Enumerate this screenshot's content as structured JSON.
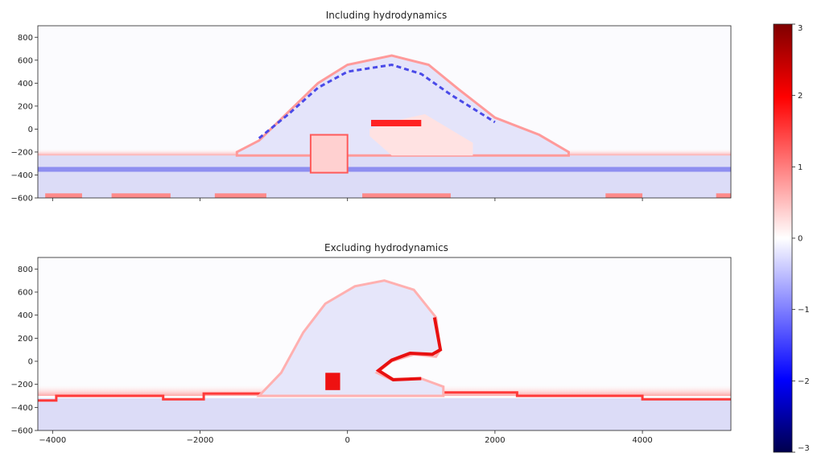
{
  "chart_data": [
    {
      "type": "heatmap",
      "title": "Including hydrodynamics",
      "xlabel": "",
      "ylabel": "",
      "xlim": [
        -4200,
        5200
      ],
      "ylim": [
        -600,
        900
      ],
      "xticks": [
        -4000,
        -2000,
        0,
        2000,
        4000
      ],
      "xtick_labels_shown": false,
      "yticks": [
        -600,
        -400,
        -200,
        0,
        200,
        400,
        600,
        800
      ],
      "ytick_labels": [
        "−600",
        "−400",
        "−200",
        "0",
        "200",
        "400",
        "600",
        "800"
      ],
      "colormap": "bwr",
      "clim": [
        -3,
        3
      ]
    },
    {
      "type": "heatmap",
      "title": "Excluding hydrodynamics",
      "xlabel": "",
      "ylabel": "",
      "xlim": [
        -4200,
        5200
      ],
      "ylim": [
        -600,
        900
      ],
      "xticks": [
        -4000,
        -2000,
        0,
        2000,
        4000
      ],
      "xtick_labels": [
        "−4000",
        "−2000",
        "0",
        "2000",
        "4000"
      ],
      "yticks": [
        -600,
        -400,
        -200,
        0,
        200,
        400,
        600,
        800
      ],
      "ytick_labels": [
        "−600",
        "−400",
        "−200",
        "0",
        "200",
        "400",
        "600",
        "800"
      ],
      "colormap": "bwr",
      "clim": [
        -3,
        3
      ]
    }
  ],
  "colorbar": {
    "range": [
      -3,
      3
    ],
    "ticks": [
      -3,
      -2,
      -1,
      0,
      1,
      2,
      3
    ],
    "tick_labels": [
      "−3",
      "−2",
      "−1",
      "0",
      "1",
      "2",
      "3"
    ],
    "colors": {
      "low": "#00004c",
      "mid_low": "#0000ff",
      "zero": "#ffffff",
      "mid_high": "#ff0000",
      "high": "#7f0000"
    }
  }
}
